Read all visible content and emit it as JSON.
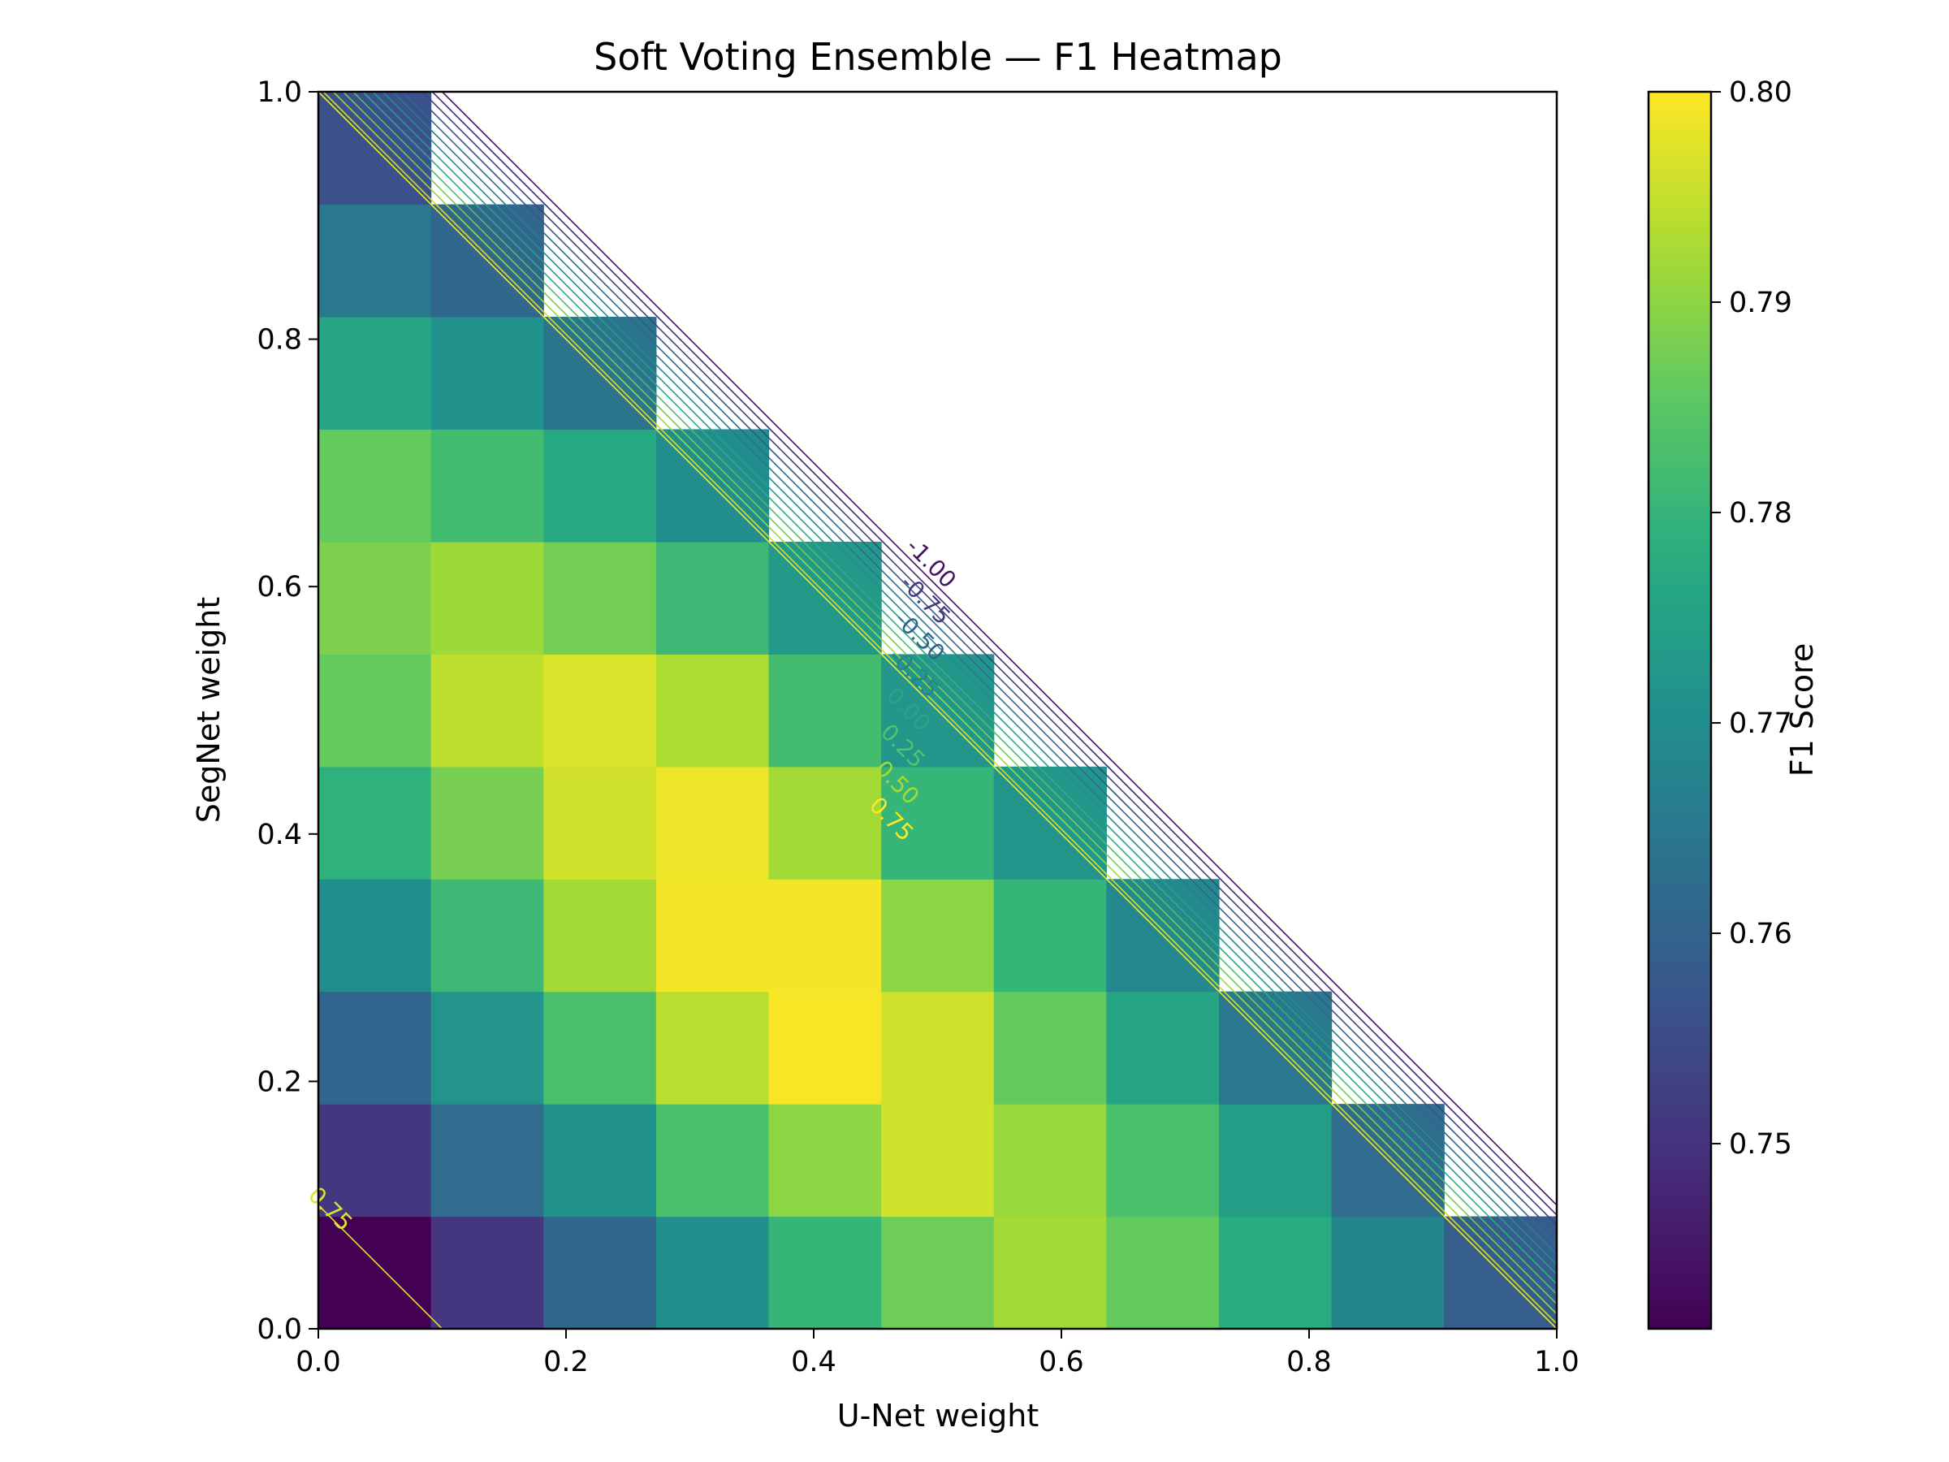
{
  "chart_data": {
    "type": "heatmap",
    "title": "Soft Voting Ensemble — F1 Heatmap",
    "xlabel": "U-Net weight",
    "ylabel": "SegNet weight",
    "colorbar_label": "F1 Score",
    "colormap": "viridis",
    "xlim": [
      0.0,
      1.0
    ],
    "ylim": [
      0.0,
      1.0
    ],
    "x_ticks": [
      "0.0",
      "0.2",
      "0.4",
      "0.6",
      "0.8",
      "1.0"
    ],
    "y_ticks": [
      "0.0",
      "0.2",
      "0.4",
      "0.6",
      "0.8",
      "1.0"
    ],
    "colorbar_range": [
      0.7412,
      0.8
    ],
    "colorbar_ticks": [
      "0.75",
      "0.76",
      "0.77",
      "0.78",
      "0.79",
      "0.80"
    ],
    "grid_size": 11,
    "cell_step": 0.0909,
    "f1_matrix_rows_segnet_bottom_to_top": [
      [
        0.7412,
        0.7505,
        0.761,
        0.7705,
        0.78,
        0.787,
        0.792,
        0.786,
        0.778,
        0.768,
        0.759
      ],
      [
        0.751,
        0.762,
        0.771,
        0.783,
        0.79,
        0.796,
        0.791,
        0.783,
        0.774,
        0.762,
        null
      ],
      [
        0.7605,
        0.7715,
        0.783,
        0.794,
        0.7995,
        0.796,
        0.786,
        0.776,
        0.765,
        null,
        null
      ],
      [
        0.77,
        0.781,
        0.792,
        0.799,
        0.7992,
        0.79,
        0.78,
        0.769,
        null,
        null,
        null
      ],
      [
        0.779,
        0.788,
        0.796,
        0.7985,
        0.792,
        0.78,
        0.772,
        null,
        null,
        null,
        null
      ],
      [
        0.786,
        0.7945,
        0.797,
        0.793,
        0.782,
        0.772,
        null,
        null,
        null,
        null,
        null
      ],
      [
        0.7885,
        0.7915,
        0.7875,
        0.781,
        0.773,
        null,
        null,
        null,
        null,
        null,
        null
      ],
      [
        0.786,
        0.782,
        0.777,
        0.77,
        null,
        null,
        null,
        null,
        null,
        null,
        null
      ],
      [
        0.776,
        0.771,
        0.764,
        null,
        null,
        null,
        null,
        null,
        null,
        null,
        null
      ],
      [
        0.765,
        0.761,
        null,
        null,
        null,
        null,
        null,
        null,
        null,
        null,
        null
      ],
      [
        0.756,
        null,
        null,
        null,
        null,
        null,
        null,
        null,
        null,
        null,
        null
      ]
    ],
    "contour_labels": [
      "-1.00",
      "-0.75",
      "-0.50",
      "-0.25",
      "0.00",
      "0.25",
      "0.50",
      "0.75"
    ],
    "contour_levels_sum": [
      1.1,
      1.092,
      1.084,
      1.076,
      1.068,
      1.06,
      1.052,
      1.044,
      1.036,
      1.028,
      1.02,
      1.012,
      1.004,
      1.0
    ],
    "corner_contour_label": "0.75",
    "corner_contour_sum": 0.1,
    "legend": "none",
    "grid": false
  }
}
